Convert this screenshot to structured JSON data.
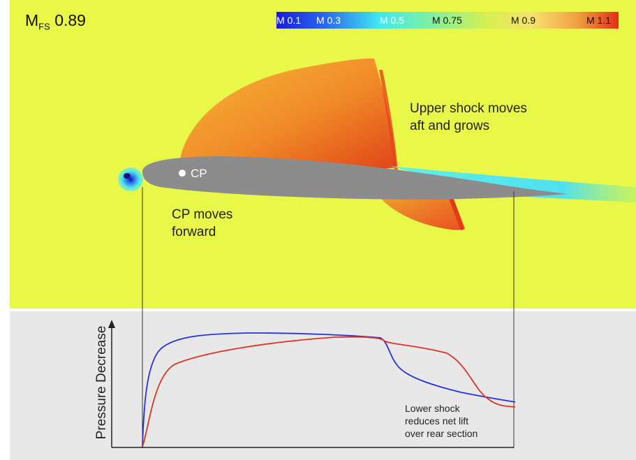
{
  "flow": {
    "mach_prefix": "M",
    "mach_subscript": "FS",
    "mach_value": "0.89"
  },
  "colorbar": {
    "stops": [
      "#1a1ae0",
      "#2a66f0",
      "#40e8f0",
      "#7ff0a0",
      "#d8f050",
      "#f8e070",
      "#f0a040",
      "#e03018"
    ],
    "labels": [
      "M 0.1",
      "M 0.3",
      "M 0.5",
      "M 0.75",
      "M 0.9",
      "M 1.1"
    ],
    "label_colors": [
      "#ffffff",
      "#ffffff",
      "#ffffff",
      "#111111",
      "#111111",
      "#111111"
    ]
  },
  "annotations": {
    "cp_marker": "CP",
    "upper_shock_line1": "Upper shock moves",
    "upper_shock_line2": "aft and grows",
    "cp_moves_line1": "CP moves",
    "cp_moves_line2": "forward",
    "lower_shock_line1": "Lower shock",
    "lower_shock_line2": "reduces net lift",
    "lower_shock_line3": "over rear section"
  },
  "plot": {
    "ylabel": "Pressure Decrease",
    "xlabel": "",
    "series_colors": {
      "blue": "#2233dd",
      "red": "#dd3322"
    }
  },
  "colors": {
    "field_background": "#e9f748",
    "plot_background": "#e8e8e8",
    "airfoil": "#8c8c8c"
  }
}
